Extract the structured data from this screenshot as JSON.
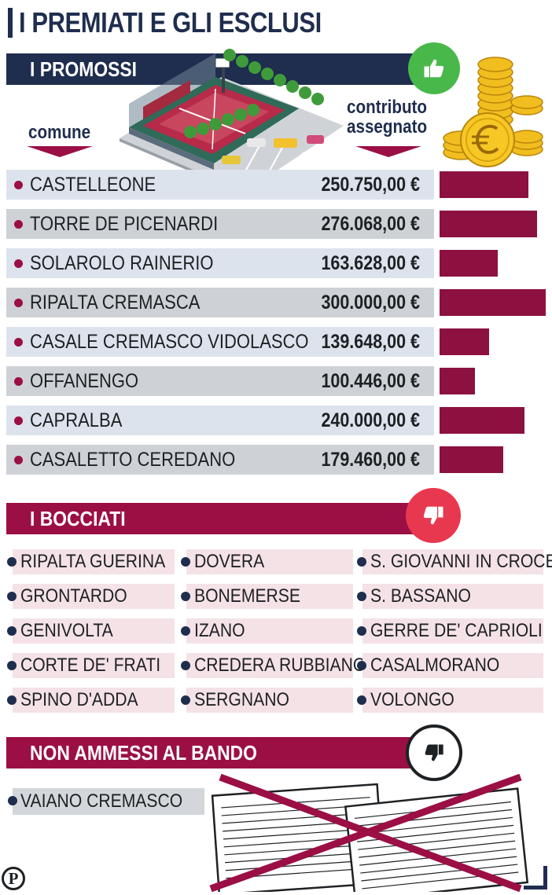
{
  "title": "I PREMIATI E GLI ESCLUSI",
  "promossi": {
    "heading": "I PROMOSSI",
    "col_comune": "comune",
    "col_contributo_1": "contributo",
    "col_contributo_2": "assegnato",
    "rows": [
      {
        "name": "CASTELLEONE",
        "amount": "250.750,00 €"
      },
      {
        "name": "TORRE DE PICENARDI",
        "amount": "276.068,00 €"
      },
      {
        "name": "SOLAROLO RAINERIO",
        "amount": "163.628,00 €"
      },
      {
        "name": "RIPALTA CREMASCA",
        "amount": "300.000,00 €"
      },
      {
        "name": "CASALE CREMASCO VIDOLASCO",
        "amount": "139.648,00 €"
      },
      {
        "name": "OFFANENGO",
        "amount": "100.446,00 €"
      },
      {
        "name": "CAPRALBA",
        "amount": "240.000,00 €"
      },
      {
        "name": "CASALETTO CEREDANO",
        "amount": "179.460,00 €"
      }
    ]
  },
  "bocciati": {
    "heading": "I BOCCIATI",
    "columns": [
      [
        "RIPALTA GUERINA",
        "GRONTARDO",
        "GENIVOLTA",
        "CORTE DE' FRATI",
        "SPINO D'ADDA"
      ],
      [
        "DOVERA",
        "BONEMERSE",
        "IZANO",
        "CREDERA RUBBIANO",
        "SERGNANO"
      ],
      [
        "S. GIOVANNI IN CROCE",
        "S. BASSANO",
        "GERRE DE' CAPRIOLI",
        "CASALMORANO",
        "VOLONGO"
      ]
    ]
  },
  "non_ammessi": {
    "heading": "NON AMMESSI AL BANDO",
    "items": [
      "VAIANO CREMASCO"
    ]
  },
  "logo_letter": "P",
  "colors": {
    "navy": "#1f2d4e",
    "wine": "#9b0f45",
    "bar": "#8c1140",
    "thumb_up": "#49b84a",
    "thumb_down": "#e8384f",
    "row_light": "#dde3ec",
    "row_dark": "#ced2d7",
    "cell_pink": "#f4e2e7",
    "coin": "#f2bd1f"
  },
  "icons": [
    "thumbs-up-icon",
    "thumbs-down-icon",
    "euro-coins-icon",
    "sports-field-icon",
    "crossed-documents-icon",
    "publisher-logo-icon"
  ],
  "chart_data": {
    "type": "bar",
    "orientation": "horizontal",
    "title": "",
    "categories": [
      "CASTELLEONE",
      "TORRE DE PICENARDI",
      "SOLAROLO RAINERIO",
      "RIPALTA CREMASCA",
      "CASALE CREMASCO VIDOLASCO",
      "OFFANENGO",
      "CAPRALBA",
      "CASALETTO CEREDANO"
    ],
    "values": [
      250750,
      276068,
      163628,
      300000,
      139648,
      100446,
      240000,
      179460
    ],
    "xlabel": "",
    "ylabel": "",
    "xlim": [
      0,
      300000
    ],
    "grid": false
  }
}
